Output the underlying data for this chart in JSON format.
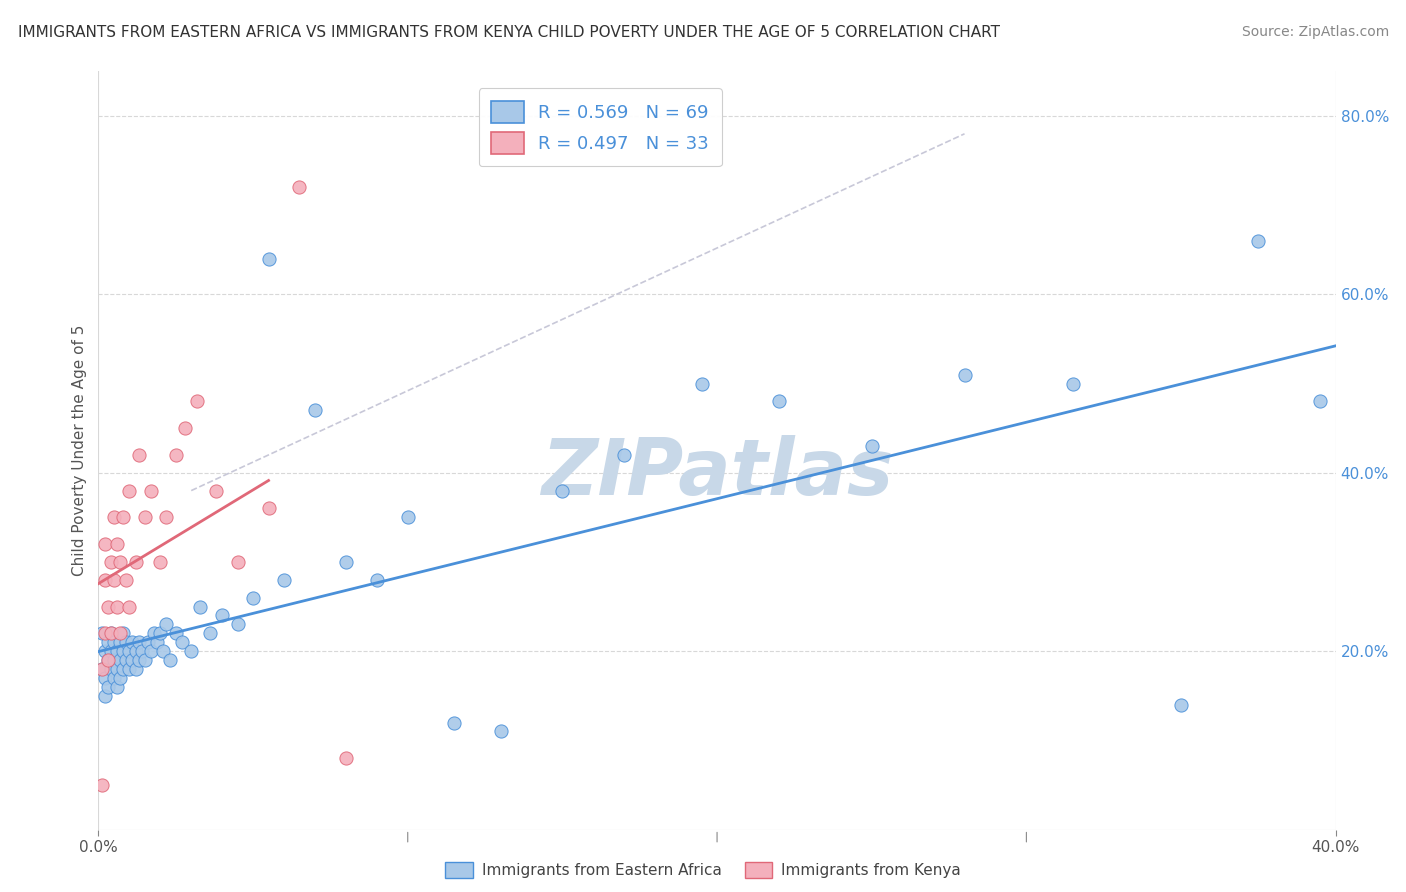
{
  "title": "IMMIGRANTS FROM EASTERN AFRICA VS IMMIGRANTS FROM KENYA CHILD POVERTY UNDER THE AGE OF 5 CORRELATION CHART",
  "source": "Source: ZipAtlas.com",
  "ylabel": "Child Poverty Under the Age of 5",
  "legend_label1": "Immigrants from Eastern Africa",
  "legend_label2": "Immigrants from Kenya",
  "R1": 0.569,
  "N1": 69,
  "R2": 0.497,
  "N2": 33,
  "color1": "#a8c8e8",
  "color2": "#f4b0bc",
  "line_color1": "#4a90d9",
  "line_color2": "#e06878",
  "dashed_color": "#c8c8d8",
  "watermark": "ZIPatlas",
  "watermark_color": "#c8d8e8",
  "background": "#ffffff",
  "grid_color": "#d8d8d8",
  "blue_scatter_x": [
    0.001,
    0.001,
    0.002,
    0.002,
    0.002,
    0.003,
    0.003,
    0.003,
    0.004,
    0.004,
    0.004,
    0.005,
    0.005,
    0.005,
    0.006,
    0.006,
    0.006,
    0.007,
    0.007,
    0.007,
    0.008,
    0.008,
    0.008,
    0.009,
    0.009,
    0.01,
    0.01,
    0.011,
    0.011,
    0.012,
    0.012,
    0.013,
    0.013,
    0.014,
    0.015,
    0.016,
    0.017,
    0.018,
    0.019,
    0.02,
    0.021,
    0.022,
    0.023,
    0.025,
    0.027,
    0.03,
    0.033,
    0.036,
    0.04,
    0.045,
    0.05,
    0.055,
    0.06,
    0.07,
    0.08,
    0.09,
    0.1,
    0.115,
    0.13,
    0.15,
    0.17,
    0.195,
    0.22,
    0.25,
    0.28,
    0.315,
    0.35,
    0.375,
    0.395
  ],
  "blue_scatter_y": [
    0.18,
    0.22,
    0.17,
    0.2,
    0.15,
    0.19,
    0.21,
    0.16,
    0.2,
    0.18,
    0.22,
    0.17,
    0.19,
    0.21,
    0.18,
    0.2,
    0.16,
    0.19,
    0.21,
    0.17,
    0.2,
    0.18,
    0.22,
    0.19,
    0.21,
    0.18,
    0.2,
    0.19,
    0.21,
    0.18,
    0.2,
    0.19,
    0.21,
    0.2,
    0.19,
    0.21,
    0.2,
    0.22,
    0.21,
    0.22,
    0.2,
    0.23,
    0.19,
    0.22,
    0.21,
    0.2,
    0.25,
    0.22,
    0.24,
    0.23,
    0.26,
    0.64,
    0.28,
    0.47,
    0.3,
    0.28,
    0.35,
    0.12,
    0.11,
    0.38,
    0.42,
    0.5,
    0.48,
    0.43,
    0.51,
    0.5,
    0.14,
    0.66,
    0.48
  ],
  "pink_scatter_x": [
    0.001,
    0.001,
    0.002,
    0.002,
    0.002,
    0.003,
    0.003,
    0.004,
    0.004,
    0.005,
    0.005,
    0.006,
    0.006,
    0.007,
    0.007,
    0.008,
    0.009,
    0.01,
    0.01,
    0.012,
    0.013,
    0.015,
    0.017,
    0.02,
    0.022,
    0.025,
    0.028,
    0.032,
    0.038,
    0.045,
    0.055,
    0.065,
    0.08
  ],
  "pink_scatter_y": [
    0.05,
    0.18,
    0.22,
    0.28,
    0.32,
    0.25,
    0.19,
    0.3,
    0.22,
    0.35,
    0.28,
    0.32,
    0.25,
    0.3,
    0.22,
    0.35,
    0.28,
    0.25,
    0.38,
    0.3,
    0.42,
    0.35,
    0.38,
    0.3,
    0.35,
    0.42,
    0.45,
    0.48,
    0.38,
    0.3,
    0.36,
    0.72,
    0.08
  ],
  "xlim": [
    0,
    0.4
  ],
  "ylim": [
    0,
    0.85
  ],
  "x_tick_positions": [
    0.0,
    0.4
  ],
  "x_tick_labels": [
    "0.0%",
    "40.0%"
  ],
  "y_tick_positions": [
    0.0,
    0.2,
    0.4,
    0.6,
    0.8
  ],
  "y_tick_labels": [
    "",
    "20.0%",
    "40.0%",
    "60.0%",
    "80.0%"
  ]
}
